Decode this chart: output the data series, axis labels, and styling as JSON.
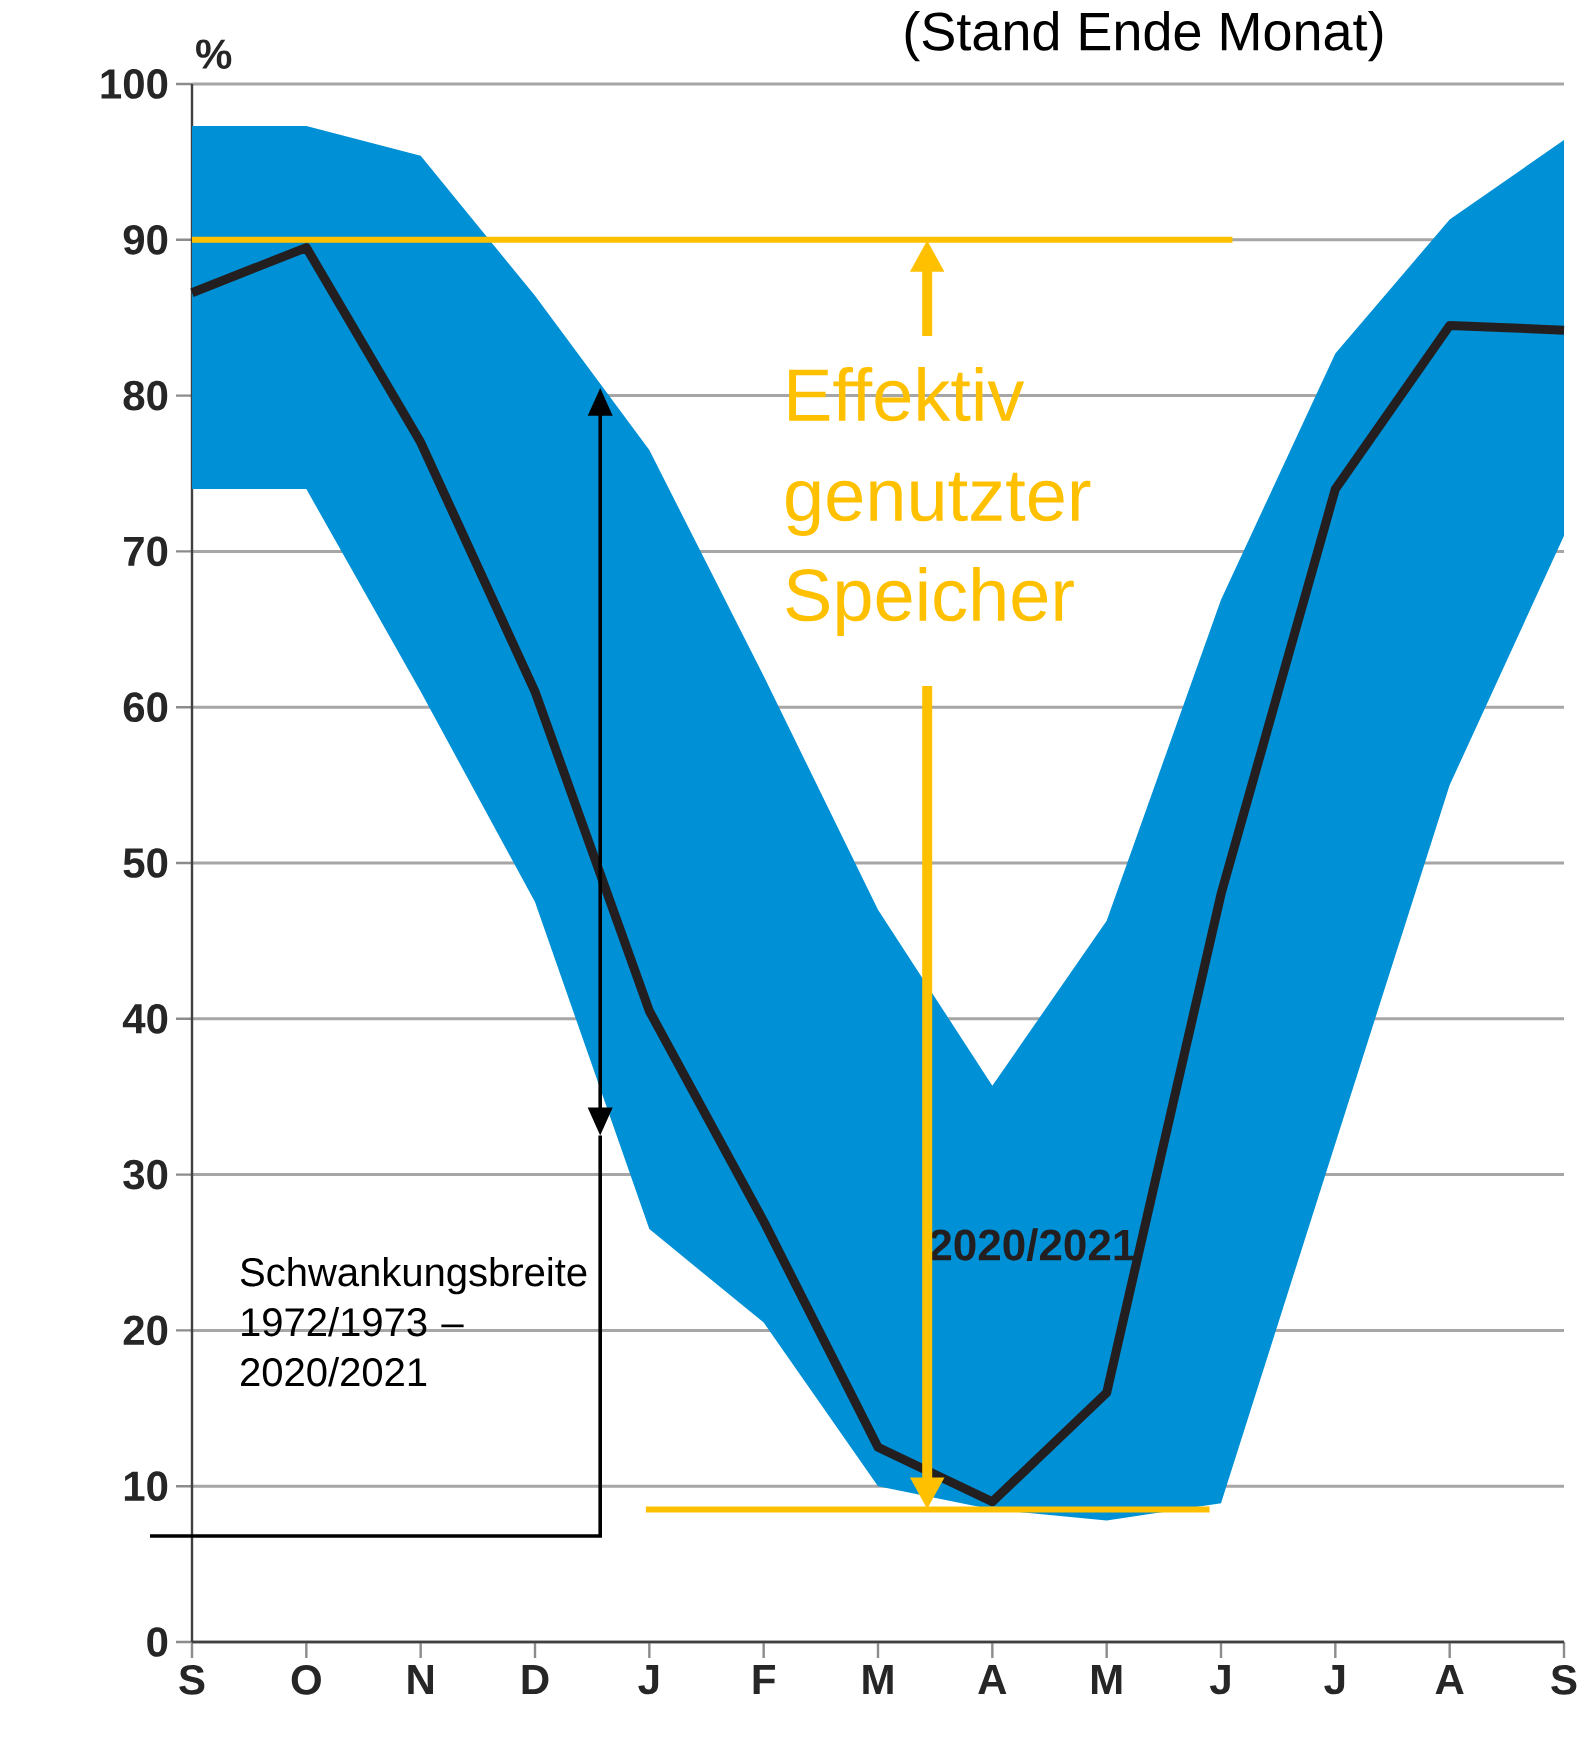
{
  "chart_data": {
    "type": "line",
    "title": "(Stand Ende Monat)",
    "ylabel": "%",
    "categories": [
      "S",
      "O",
      "N",
      "D",
      "J",
      "F",
      "M",
      "A",
      "M",
      "J",
      "J",
      "A",
      "S"
    ],
    "series": [
      {
        "name": "2020/2021",
        "color": "#231f20",
        "values": [
          86.6,
          89.5,
          77,
          61,
          40.5,
          27,
          12.5,
          9,
          16,
          48,
          74,
          84.5,
          84.2
        ],
        "lower": [
          74,
          74,
          61,
          47.5,
          26.5,
          20.5,
          10,
          8.5,
          7.8,
          8.9,
          32,
          55,
          71
        ],
        "upper": [
          97.3,
          97.3,
          95.4,
          86.4,
          76.5,
          62,
          47,
          35.7,
          46.3,
          66.9,
          82.7,
          91.3,
          96.4
        ]
      }
    ],
    "ylim": [
      0,
      100
    ],
    "yticks": [
      0,
      10,
      20,
      30,
      40,
      50,
      60,
      70,
      80,
      90,
      100
    ],
    "grid": "y",
    "ref_lines": [
      {
        "axis": "y",
        "value": 90,
        "color": "#ffc000"
      },
      {
        "axis": "y",
        "value": 8.5,
        "color": "#ffc000"
      }
    ],
    "annotations": [
      "Effektiv genutzter Speicher",
      "Schwankungsbreite 1972/1973 – 2020/2021"
    ]
  }
}
